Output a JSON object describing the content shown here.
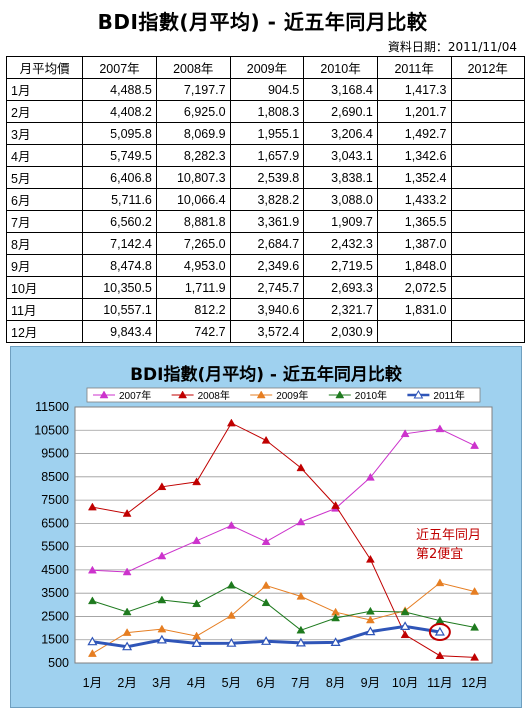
{
  "page": {
    "title": "BDI指數(月平均) - 近五年同月比較",
    "date_label": "資料日期：2011/11/04"
  },
  "table": {
    "corner": "月平均價",
    "columns": [
      "2007年",
      "2008年",
      "2009年",
      "2010年",
      "2011年",
      "2012年"
    ],
    "rows": [
      {
        "month": "1月",
        "values": [
          "4,488.5",
          "7,197.7",
          "904.5",
          "3,168.4",
          "1,417.3",
          ""
        ]
      },
      {
        "month": "2月",
        "values": [
          "4,408.2",
          "6,925.0",
          "1,808.3",
          "2,690.1",
          "1,201.7",
          ""
        ]
      },
      {
        "month": "3月",
        "values": [
          "5,095.8",
          "8,069.9",
          "1,955.1",
          "3,206.4",
          "1,492.7",
          ""
        ]
      },
      {
        "month": "4月",
        "values": [
          "5,749.5",
          "8,282.3",
          "1,657.9",
          "3,043.1",
          "1,342.6",
          ""
        ]
      },
      {
        "month": "5月",
        "values": [
          "6,406.8",
          "10,807.3",
          "2,539.8",
          "3,838.1",
          "1,352.4",
          ""
        ]
      },
      {
        "month": "6月",
        "values": [
          "5,711.6",
          "10,066.4",
          "3,828.2",
          "3,088.0",
          "1,433.2",
          ""
        ]
      },
      {
        "month": "7月",
        "values": [
          "6,560.2",
          "8,881.8",
          "3,361.9",
          "1,909.7",
          "1,365.5",
          ""
        ]
      },
      {
        "month": "8月",
        "values": [
          "7,142.4",
          "7,265.0",
          "2,684.7",
          "2,432.3",
          "1,387.0",
          ""
        ]
      },
      {
        "month": "9月",
        "values": [
          "8,474.8",
          "4,953.0",
          "2,349.6",
          "2,719.5",
          "1,848.0",
          ""
        ]
      },
      {
        "month": "10月",
        "values": [
          "10,350.5",
          "1,711.9",
          "2,745.7",
          "2,693.3",
          "2,072.5",
          ""
        ]
      },
      {
        "month": "11月",
        "values": [
          "10,557.1",
          "812.2",
          "3,940.6",
          "2,321.7",
          "1,831.0",
          ""
        ]
      },
      {
        "month": "12月",
        "values": [
          "9,843.4",
          "742.7",
          "3,572.4",
          "2,030.9",
          "",
          ""
        ]
      }
    ]
  },
  "chart_data": {
    "type": "line",
    "title": "BDI指數(月平均) - 近五年同月比較",
    "categories": [
      "1月",
      "2月",
      "3月",
      "4月",
      "5月",
      "6月",
      "7月",
      "8月",
      "9月",
      "10月",
      "11月",
      "12月"
    ],
    "y_ticks": [
      500,
      1500,
      2500,
      3500,
      4500,
      5500,
      6500,
      7500,
      8500,
      9500,
      10500,
      11500
    ],
    "ylim": [
      500,
      11500
    ],
    "grid": "horizontal",
    "legend_position": "top",
    "series": [
      {
        "name": "2007年",
        "color": "#cc33cc",
        "marker": "triangle-filled",
        "values": [
          4488.5,
          4408.2,
          5095.8,
          5749.5,
          6406.8,
          5711.6,
          6560.2,
          7142.4,
          8474.8,
          10350.5,
          10557.1,
          9843.4
        ]
      },
      {
        "name": "2008年",
        "color": "#c00000",
        "marker": "triangle-filled",
        "values": [
          7197.7,
          6925.0,
          8069.9,
          8282.3,
          10807.3,
          10066.4,
          8881.8,
          7265.0,
          4953.0,
          1711.9,
          812.2,
          742.7
        ]
      },
      {
        "name": "2009年",
        "color": "#e67e22",
        "marker": "triangle-filled",
        "values": [
          904.5,
          1808.3,
          1955.1,
          1657.9,
          2539.8,
          3828.2,
          3361.9,
          2684.7,
          2349.6,
          2745.7,
          3940.6,
          3572.4
        ]
      },
      {
        "name": "2010年",
        "color": "#1e7a1e",
        "marker": "triangle-filled",
        "values": [
          3168.4,
          2690.1,
          3206.4,
          3043.1,
          3838.1,
          3088.0,
          1909.7,
          2432.3,
          2719.5,
          2693.3,
          2321.7,
          2030.9
        ]
      },
      {
        "name": "2011年",
        "color": "#2f55b8",
        "marker": "triangle-open",
        "values": [
          1417.3,
          1201.7,
          1492.7,
          1342.6,
          1352.4,
          1433.2,
          1365.5,
          1387.0,
          1848.0,
          2072.5,
          1831.0,
          null
        ]
      }
    ],
    "annotation": {
      "lines": [
        "近五年同月",
        "第2便宜"
      ],
      "color": "#c00000",
      "target_series": "2011年",
      "target_category": "11月"
    }
  }
}
